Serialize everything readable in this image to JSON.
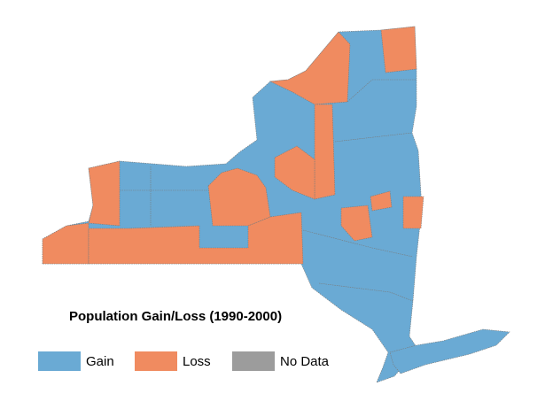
{
  "legend": {
    "title": "Population Gain/Loss (1990-2000)",
    "items": [
      {
        "label": "Gain",
        "color": "#6aaad4"
      },
      {
        "label": "Loss",
        "color": "#f08b60"
      },
      {
        "label": "No Data",
        "color": "#9c9c9c"
      }
    ]
  }
}
